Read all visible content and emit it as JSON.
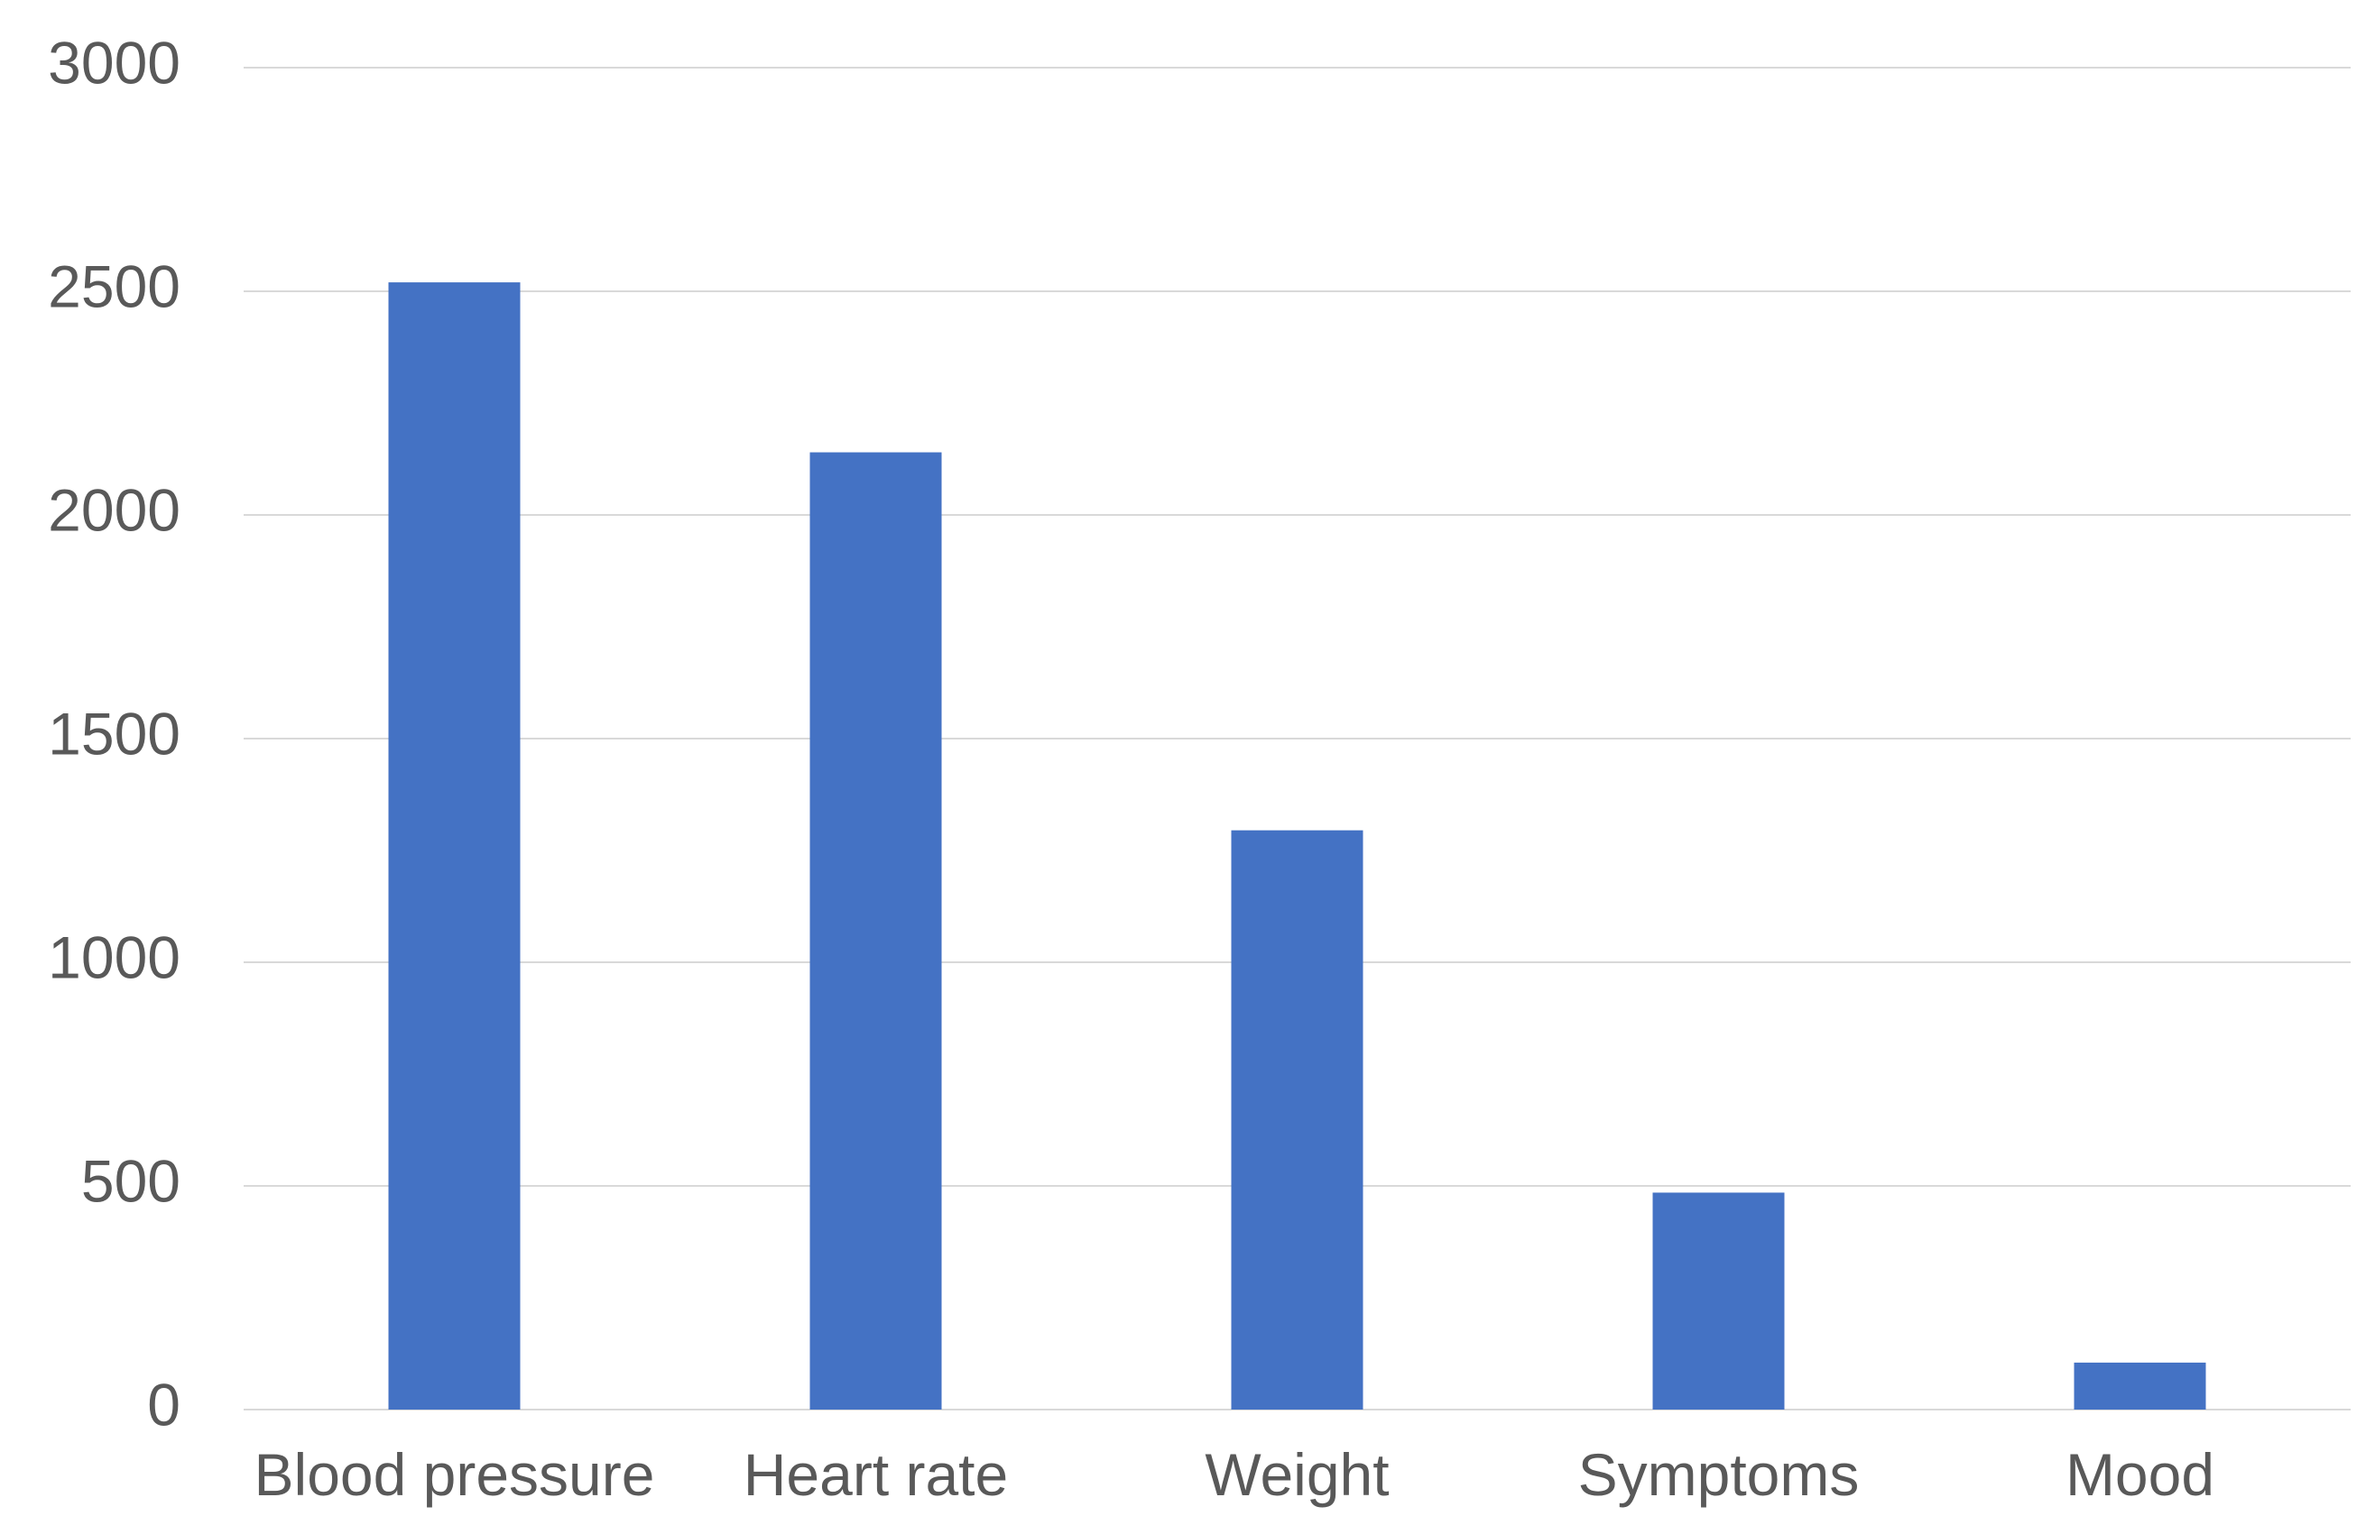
{
  "chart_data": {
    "type": "bar",
    "title": "",
    "xlabel": "",
    "ylabel": "",
    "categories": [
      "Blood pressure",
      "Heart rate",
      "Weight",
      "Symptoms",
      "Mood"
    ],
    "values": [
      2520,
      2140,
      1295,
      485,
      105
    ],
    "ylim": [
      0,
      3000
    ],
    "yticks": [
      0,
      500,
      1000,
      1500,
      2000,
      2500,
      3000
    ],
    "ytick_labels": [
      "0",
      "500",
      "1000",
      "1500",
      "2000",
      "2500",
      "3000"
    ],
    "grid": true,
    "legend": "none",
    "colors": {
      "bar": "#4472C4",
      "grid": "#D9D9D9",
      "text": "#595959"
    }
  }
}
